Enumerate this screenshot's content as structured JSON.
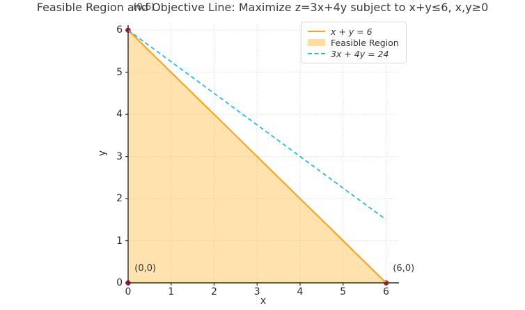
{
  "title": "Feasible Region and Objective Line: Maximize z=3x+4y subject to x+y≤6, x,y≥0",
  "axes": {
    "xlabel": "x",
    "ylabel": "y",
    "x_ticks": [
      0,
      1,
      2,
      3,
      4,
      5,
      6
    ],
    "y_ticks": [
      0,
      1,
      2,
      3,
      4,
      5,
      6
    ],
    "xlim": [
      0,
      6.3
    ],
    "ylim": [
      0,
      6.12
    ],
    "grid_style": "dotted"
  },
  "colors": {
    "constraint_line": "#F5A623",
    "objective_line": "#2FB6DA",
    "region_fill": "#FFA500",
    "region_fill_opacity": 0.32,
    "vertex_marker": "#C9205A",
    "spine": "#2b2b2b",
    "grid": "#cdcdcd",
    "text": "#333333"
  },
  "chart_data": {
    "type": "line",
    "title": "Feasible Region and Objective Line: Maximize z=3x+4y subject to x+y≤6, x,y≥0",
    "xlabel": "x",
    "ylabel": "y",
    "xlim": [
      0,
      6.3
    ],
    "ylim": [
      0,
      6.12
    ],
    "x_ticks": [
      0,
      1,
      2,
      3,
      4,
      5,
      6
    ],
    "y_ticks": [
      0,
      1,
      2,
      3,
      4,
      5,
      6
    ],
    "grid": "dotted",
    "legend_position": "upper right",
    "series": [
      {
        "name": "x + y = 6",
        "style": "solid",
        "color": "#F5A623",
        "width": 2.2,
        "points": [
          [
            0,
            6
          ],
          [
            6,
            0
          ]
        ]
      },
      {
        "name": "3x + 4y = 24",
        "style": "dashed",
        "color": "#2FB6DA",
        "width": 1.8,
        "points": [
          [
            0,
            6
          ],
          [
            6,
            1.5
          ]
        ]
      }
    ],
    "feasible_region": {
      "label": "Feasible Region",
      "vertices": [
        [
          0,
          0
        ],
        [
          6,
          0
        ],
        [
          0,
          6
        ]
      ]
    },
    "vertex_markers": {
      "color": "#C9205A",
      "points": [
        [
          0,
          0
        ],
        [
          6,
          0
        ],
        [
          0,
          6
        ]
      ]
    },
    "annotations": [
      {
        "text": "(0,0)",
        "x": 0.15,
        "y": 0.46
      },
      {
        "text": "(6,0)",
        "x": 6.16,
        "y": 0.46
      },
      {
        "text": "(0,6)",
        "x": 0.12,
        "y": 6.67
      }
    ]
  },
  "legend": {
    "entries": [
      {
        "label": "x + y = 6",
        "swatch": "line-solid",
        "color": "#F5A623",
        "italic": true
      },
      {
        "label": "Feasible Region",
        "swatch": "patch",
        "color": "#FFA500",
        "italic": false
      },
      {
        "label": "3x + 4y = 24",
        "swatch": "line-dashed",
        "color": "#2FB6DA",
        "italic": true
      }
    ]
  }
}
